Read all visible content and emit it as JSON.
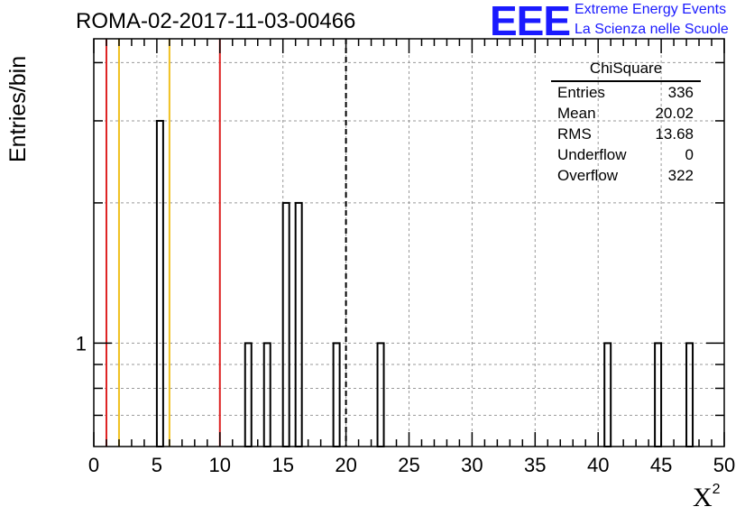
{
  "header": {
    "title": "ROMA-02-2017-11-03-00466",
    "logo_text": "EEE",
    "logo_line1": "Extreme Energy Events",
    "logo_line2": "La Scienza nelle Scuole",
    "brand_color": "#1a1aff"
  },
  "stats": {
    "title": "ChiSquare",
    "rows": [
      {
        "label": "Entries",
        "value": "336"
      },
      {
        "label": "Mean",
        "value": "20.02"
      },
      {
        "label": "RMS",
        "value": "13.68"
      },
      {
        "label": "Underflow",
        "value": "0"
      },
      {
        "label": "Overflow",
        "value": "322"
      }
    ]
  },
  "chart_data": {
    "type": "bar",
    "title": "ROMA-02-2017-11-03-00466",
    "xlabel": "X",
    "xlabel_superscript": "2",
    "ylabel": "Entries/bin",
    "xlim": [
      0,
      50
    ],
    "ylim": [
      0.6,
      4.5
    ],
    "yscale": "log",
    "grid": true,
    "bin_width": 0.5,
    "x_ticks": [
      "0",
      "5",
      "10",
      "15",
      "20",
      "25",
      "30",
      "35",
      "40",
      "45",
      "50"
    ],
    "y_ticks": [
      "1"
    ],
    "bins": [
      {
        "x": 5.0,
        "count": 3
      },
      {
        "x": 12.0,
        "count": 1
      },
      {
        "x": 13.5,
        "count": 1
      },
      {
        "x": 15.0,
        "count": 2
      },
      {
        "x": 16.0,
        "count": 2
      },
      {
        "x": 19.0,
        "count": 1
      },
      {
        "x": 22.5,
        "count": 1
      },
      {
        "x": 40.5,
        "count": 1
      },
      {
        "x": 44.5,
        "count": 1
      },
      {
        "x": 47.0,
        "count": 1
      }
    ],
    "reference_lines": [
      {
        "x": 1,
        "color": "#dd2222",
        "style": "solid"
      },
      {
        "x": 2,
        "color": "#f0c020",
        "style": "solid"
      },
      {
        "x": 6,
        "color": "#f0c020",
        "style": "solid"
      },
      {
        "x": 10,
        "color": "#dd2222",
        "style": "solid"
      },
      {
        "x": 20,
        "color": "#000000",
        "style": "dashed"
      }
    ]
  }
}
